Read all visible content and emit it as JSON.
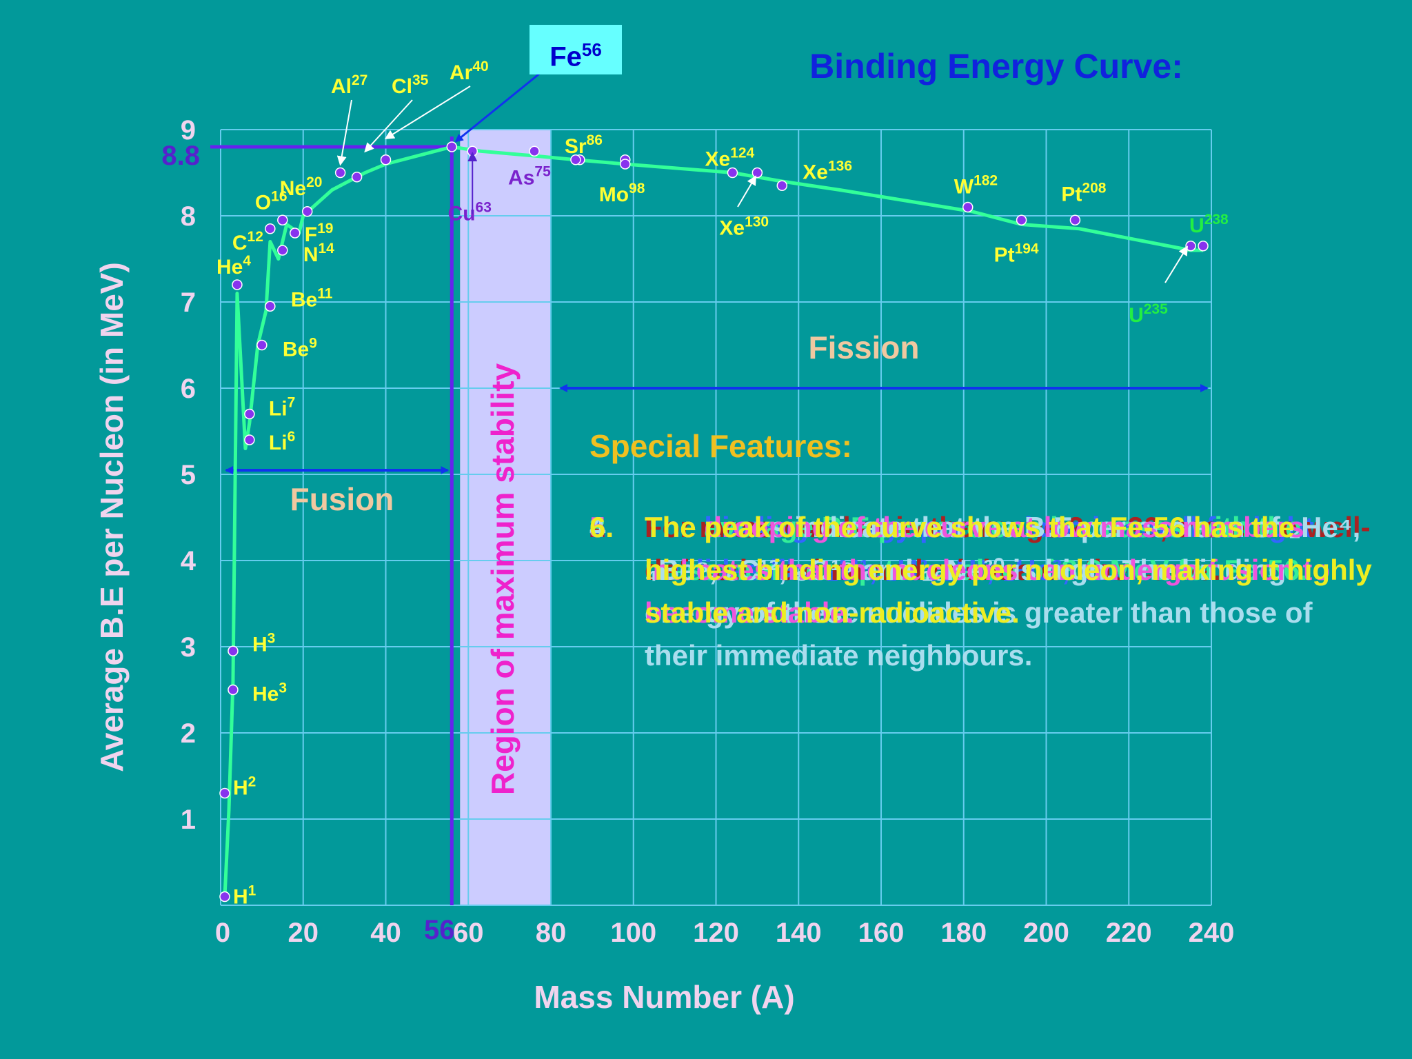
{
  "chart_data": {
    "type": "line",
    "title": "Binding Energy Curve:",
    "xlabel": "Mass Number (A)",
    "ylabel": "Average B.E per Nucleon (in MeV)",
    "xlim": [
      0,
      240
    ],
    "ylim": [
      0,
      9
    ],
    "xticks": [
      0,
      20,
      40,
      60,
      80,
      100,
      120,
      140,
      160,
      180,
      200,
      220,
      240
    ],
    "yticks": [
      1,
      2,
      3,
      4,
      5,
      6,
      7,
      8,
      9
    ],
    "grid": true,
    "series": [
      {
        "points": [
          {
            "x": 1,
            "y": 0.1
          },
          {
            "x": 2,
            "y": 1.1
          },
          {
            "x": 3,
            "y": 2.6
          },
          {
            "x": 4,
            "y": 7.1
          },
          {
            "x": 6,
            "y": 5.3
          },
          {
            "x": 7,
            "y": 5.6
          },
          {
            "x": 9,
            "y": 6.5
          },
          {
            "x": 11,
            "y": 6.9
          },
          {
            "x": 12,
            "y": 7.7
          },
          {
            "x": 14,
            "y": 7.5
          },
          {
            "x": 16,
            "y": 7.9
          },
          {
            "x": 19,
            "y": 7.8
          },
          {
            "x": 20,
            "y": 8.0
          },
          {
            "x": 27,
            "y": 8.3
          },
          {
            "x": 35,
            "y": 8.5
          },
          {
            "x": 40,
            "y": 8.6
          },
          {
            "x": 56,
            "y": 8.8
          },
          {
            "x": 63,
            "y": 8.75
          },
          {
            "x": 75,
            "y": 8.7
          },
          {
            "x": 86,
            "y": 8.65
          },
          {
            "x": 98,
            "y": 8.6
          },
          {
            "x": 124,
            "y": 8.5
          },
          {
            "x": 130,
            "y": 8.45
          },
          {
            "x": 136,
            "y": 8.4
          },
          {
            "x": 150,
            "y": 8.3
          },
          {
            "x": 182,
            "y": 8.05
          },
          {
            "x": 194,
            "y": 7.9
          },
          {
            "x": 208,
            "y": 7.85
          },
          {
            "x": 235,
            "y": 7.6
          },
          {
            "x": 238,
            "y": 7.6
          }
        ]
      }
    ],
    "nuclides": [
      {
        "sym": "H",
        "mass": "1",
        "x": 1,
        "y": 0.1,
        "dx": 12,
        "dy": 0
      },
      {
        "sym": "H",
        "mass": "2",
        "x": 1,
        "y": 1.3,
        "dx": 12,
        "dy": -8
      },
      {
        "sym": "He",
        "mass": "3",
        "x": 3,
        "y": 2.5,
        "dx": 28,
        "dy": 6
      },
      {
        "sym": "H",
        "mass": "3",
        "x": 3,
        "y": 2.95,
        "dx": 28,
        "dy": -10
      },
      {
        "sym": "He",
        "mass": "4",
        "x": 4,
        "y": 7.2,
        "dx": -30,
        "dy": -26
      },
      {
        "sym": "Li",
        "mass": "6",
        "x": 7,
        "y": 5.4,
        "dx": 28,
        "dy": 4
      },
      {
        "sym": "Li",
        "mass": "7",
        "x": 7,
        "y": 5.7,
        "dx": 28,
        "dy": -8
      },
      {
        "sym": "Be",
        "mass": "9",
        "x": 10,
        "y": 6.5,
        "dx": 30,
        "dy": 6
      },
      {
        "sym": "Be",
        "mass": "11",
        "x": 12,
        "y": 6.95,
        "dx": 30,
        "dy": -10
      },
      {
        "sym": "C",
        "mass": "12",
        "x": 12,
        "y": 7.85,
        "dx": -55,
        "dy": 20
      },
      {
        "sym": "N",
        "mass": "14",
        "x": 15,
        "y": 7.6,
        "dx": 30,
        "dy": 6
      },
      {
        "sym": "O",
        "mass": "16",
        "x": 15,
        "y": 7.95,
        "dx": -40,
        "dy": -26
      },
      {
        "sym": "F",
        "mass": "19",
        "x": 18,
        "y": 7.8,
        "dx": 14,
        "dy": 2
      },
      {
        "sym": "Ne",
        "mass": "20",
        "x": 21,
        "y": 8.05,
        "dx": -40,
        "dy": -34
      },
      {
        "sym": "Cu",
        "mass": "63",
        "x": 61,
        "y": 8.75,
        "dx": -4,
        "dy": 90,
        "color": "#7a22cc",
        "anchor": "middle"
      },
      {
        "sym": "As",
        "mass": "75",
        "x": 76,
        "y": 8.75,
        "dx": -38,
        "dy": 38,
        "color": "#7a22cc"
      },
      {
        "sym": "Sr",
        "mass": "86",
        "x": 87,
        "y": 8.65,
        "dx": -22,
        "dy": -20
      },
      {
        "sym": "Mo",
        "mass": "98",
        "x": 98,
        "y": 8.65,
        "dx": -38,
        "dy": 50
      },
      {
        "sym": "Xe",
        "mass": "124",
        "x": 124,
        "y": 8.5,
        "dx": -40,
        "dy": -20
      },
      {
        "sym": "Xe",
        "mass": "130",
        "x": 130,
        "y": 8.5,
        "dx": -55,
        "dy": 80
      },
      {
        "sym": "Xe",
        "mass": "136",
        "x": 136,
        "y": 8.35,
        "dx": 30,
        "dy": -20
      },
      {
        "sym": "W",
        "mass": "182",
        "x": 181,
        "y": 8.1,
        "dx": -20,
        "dy": -30
      },
      {
        "sym": "Pt",
        "mass": "194",
        "x": 194,
        "y": 7.95,
        "dx": -40,
        "dy": 50
      },
      {
        "sym": "Pt",
        "mass": "208",
        "x": 207,
        "y": 7.95,
        "dx": -20,
        "dy": -38
      },
      {
        "sym": "U",
        "mass": "235",
        "x": 235,
        "y": 7.65,
        "dx": -90,
        "dy": 100,
        "color": "#22ee44"
      },
      {
        "sym": "U",
        "mass": "238",
        "x": 238,
        "y": 7.65,
        "dx": -20,
        "dy": -30,
        "color": "#22ee44"
      }
    ],
    "callouts": [
      {
        "sym": "Al",
        "mass": "27",
        "x": 29,
        "y": 8.5,
        "lx": 510,
        "ly": 145
      },
      {
        "sym": "Cl",
        "mass": "35",
        "x": 35,
        "y": 8.65,
        "lx": 598,
        "ly": 145
      },
      {
        "sym": "Ar",
        "mass": "40",
        "x": 40,
        "y": 8.8,
        "lx": 682,
        "ly": 125
      }
    ],
    "annotations": {
      "fe_label": {
        "sym": "Fe",
        "mass": "56"
      },
      "peak_value": "8.8",
      "peak_mass": "56",
      "stability_region": [
        58,
        80
      ],
      "stability_label": "Region of maximum stability",
      "fusion_label": "Fusion",
      "fusion_range": [
        0,
        56
      ],
      "fission_label": "Fission",
      "fission_range": [
        80,
        240
      ]
    }
  },
  "features": {
    "heading": "Special Features:",
    "items": [
      {
        "num": "1.",
        "text": "The binding energy per nucleon is small for light nuclides like ₁H¹, ₁H², ₁H³, ₂He³, etc.",
        "color": "#3366ff"
      },
      {
        "num": "2.",
        "text": "For mass number in the range 2 to 20, there are well-defined maxima and minima on the curve.",
        "color": "#aa2222"
      },
      {
        "num": "3.",
        "text": "The average B.E per nucleon increases with the mass number up to a value of 8.8 MeV for Fe-56.",
        "color": "#33ee99"
      },
      {
        "num": "4.",
        "text": "The peaks indicate that the B.E per nucleon of ₂He⁴, ₄Be⁸, ₆C¹², ₈O¹⁶ and ₁₀Ne²⁰ is high. The binding energy of these nuclides is greater than those of their immediate neighbours.",
        "color": "#aaddee"
      },
      {
        "num": "5.",
        "text": "The drooping of the curve at low mass numbers indicates that the nucleons can undergo fusion to become stable.",
        "color": "#ee55dd"
      },
      {
        "num": "6.",
        "text": "The peak of the curve shows that Fe-56 has the highest binding energy per nucleon, making it highly stable and non-radioactive.",
        "color": "#eeee22"
      }
    ]
  }
}
